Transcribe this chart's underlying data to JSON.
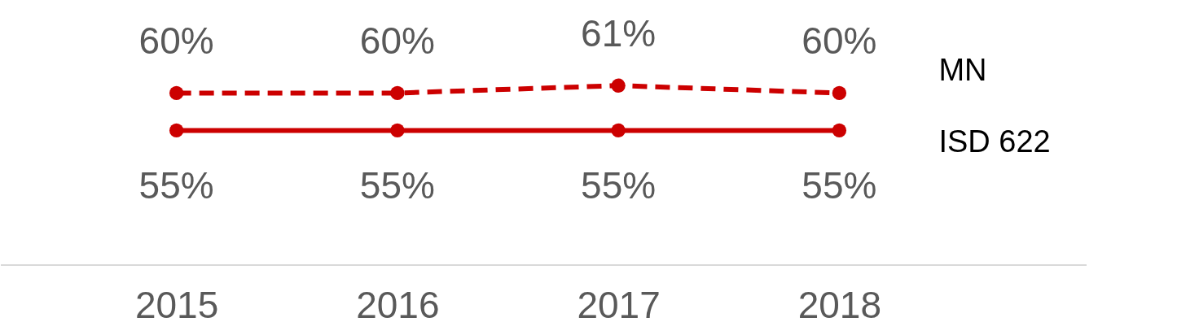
{
  "chart_data": {
    "type": "line",
    "categories": [
      "2015",
      "2016",
      "2017",
      "2018"
    ],
    "marker": "circle",
    "data_labels": true,
    "series": [
      {
        "name": "MN",
        "color": "#cc0000",
        "line_style": "dashed",
        "values": [
          60,
          60,
          61,
          60
        ],
        "value_labels": [
          "60%",
          "60%",
          "61%",
          "60%"
        ]
      },
      {
        "name": "ISD 622",
        "color": "#cc0000",
        "line_style": "solid",
        "values": [
          55,
          55,
          55,
          55
        ],
        "value_labels": [
          "55%",
          "55%",
          "55%",
          "55%"
        ]
      }
    ]
  }
}
